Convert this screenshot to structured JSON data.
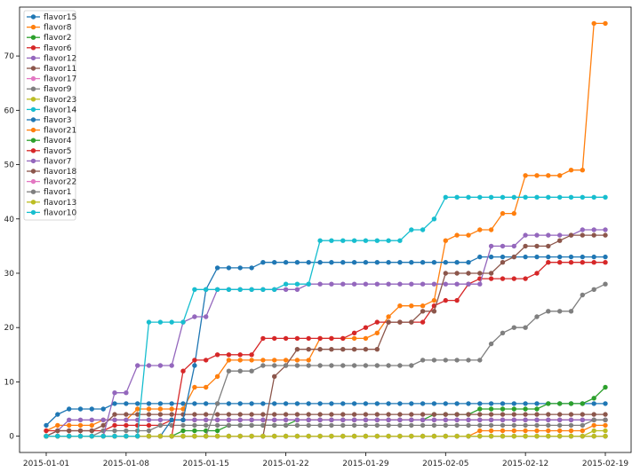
{
  "chart_data": {
    "type": "line",
    "x_type": "date",
    "x": [
      "2015-01-01",
      "2015-01-02",
      "2015-01-03",
      "2015-01-04",
      "2015-01-05",
      "2015-01-06",
      "2015-01-07",
      "2015-01-08",
      "2015-01-09",
      "2015-01-10",
      "2015-01-11",
      "2015-01-12",
      "2015-01-13",
      "2015-01-14",
      "2015-01-15",
      "2015-01-16",
      "2015-01-17",
      "2015-01-18",
      "2015-01-19",
      "2015-01-20",
      "2015-01-21",
      "2015-01-22",
      "2015-01-23",
      "2015-01-24",
      "2015-01-25",
      "2015-01-26",
      "2015-01-27",
      "2015-01-28",
      "2015-01-29",
      "2015-01-30",
      "2015-01-31",
      "2015-02-01",
      "2015-02-02",
      "2015-02-03",
      "2015-02-04",
      "2015-02-05",
      "2015-02-06",
      "2015-02-07",
      "2015-02-08",
      "2015-02-09",
      "2015-02-10",
      "2015-02-11",
      "2015-02-12",
      "2015-02-13",
      "2015-02-14",
      "2015-02-15",
      "2015-02-16",
      "2015-02-17",
      "2015-02-18",
      "2015-02-19"
    ],
    "x_ticks": [
      "2015-01-01",
      "2015-01-08",
      "2015-01-15",
      "2015-01-22",
      "2015-01-29",
      "2015-02-05",
      "2015-02-12",
      "2015-02-19"
    ],
    "ylim": [
      -3,
      79
    ],
    "y_ticks": [
      0,
      10,
      20,
      30,
      40,
      50,
      60,
      70
    ],
    "grid": false,
    "legend_position": "top-left",
    "title": "",
    "xlabel": "",
    "ylabel": "",
    "series": [
      {
        "name": "flavor15",
        "color": "#1f77b4",
        "values": [
          2,
          4,
          5,
          5,
          5,
          5,
          6,
          6,
          6,
          6,
          6,
          6,
          6,
          6,
          6,
          6,
          6,
          6,
          6,
          6,
          6,
          6,
          6,
          6,
          6,
          6,
          6,
          6,
          6,
          6,
          6,
          6,
          6,
          6,
          6,
          6,
          6,
          6,
          6,
          6,
          6,
          6,
          6,
          6,
          6,
          6,
          6,
          6,
          6,
          6
        ]
      },
      {
        "name": "flavor8",
        "color": "#ff7f0e",
        "values": [
          1,
          2,
          2,
          2,
          2,
          3,
          3,
          3,
          5,
          5,
          5,
          5,
          5,
          9,
          9,
          11,
          14,
          14,
          14,
          14,
          14,
          14,
          14,
          14,
          18,
          18,
          18,
          18,
          18,
          19,
          22,
          24,
          24,
          24,
          25,
          36,
          37,
          37,
          38,
          38,
          41,
          41,
          48,
          48,
          48,
          48,
          49,
          49,
          76,
          76
        ]
      },
      {
        "name": "flavor2",
        "color": "#2ca02c",
        "values": [
          0,
          0,
          0,
          0,
          0,
          0,
          0,
          0,
          0,
          0,
          0,
          0,
          1,
          1,
          1,
          1,
          2,
          2,
          2,
          2,
          2,
          2,
          3,
          3,
          3,
          3,
          3,
          3,
          3,
          3,
          3,
          3,
          3,
          3,
          4,
          4,
          4,
          4,
          5,
          5,
          5,
          5,
          5,
          5,
          6,
          6,
          6,
          6,
          7,
          9
        ]
      },
      {
        "name": "flavor6",
        "color": "#d62728",
        "values": [
          1,
          1,
          1,
          1,
          1,
          1,
          2,
          2,
          2,
          2,
          2,
          3,
          3,
          3,
          3,
          3,
          3,
          3,
          3,
          3,
          3,
          3,
          3,
          3,
          3,
          3,
          3,
          3,
          3,
          3,
          3,
          3,
          3,
          3,
          3,
          3,
          3,
          3,
          3,
          3,
          3,
          3,
          3,
          3,
          3,
          3,
          3,
          3,
          3,
          3
        ]
      },
      {
        "name": "flavor12",
        "color": "#9467bd",
        "values": [
          0,
          1,
          3,
          3,
          3,
          3,
          3,
          3,
          3,
          3,
          3,
          3,
          3,
          3,
          3,
          3,
          3,
          3,
          3,
          3,
          3,
          3,
          3,
          3,
          3,
          3,
          3,
          3,
          3,
          3,
          3,
          3,
          3,
          3,
          3,
          3,
          3,
          3,
          3,
          3,
          3,
          3,
          3,
          3,
          3,
          3,
          3,
          3,
          3,
          3
        ]
      },
      {
        "name": "flavor11",
        "color": "#8c564b",
        "values": [
          0,
          1,
          1,
          1,
          1,
          2,
          4,
          4,
          4,
          4,
          4,
          4,
          4,
          4,
          4,
          4,
          4,
          4,
          4,
          4,
          4,
          4,
          4,
          4,
          4,
          4,
          4,
          4,
          4,
          4,
          4,
          4,
          4,
          4,
          4,
          4,
          4,
          4,
          4,
          4,
          4,
          4,
          4,
          4,
          4,
          4,
          4,
          4,
          4,
          4
        ]
      },
      {
        "name": "flavor17",
        "color": "#e377c2",
        "values": [
          0,
          0,
          0,
          0,
          0,
          0,
          0,
          0,
          0,
          0,
          0,
          0,
          0,
          0,
          0,
          0,
          0,
          0,
          0,
          0,
          0,
          0,
          0,
          0,
          0,
          0,
          0,
          0,
          0,
          0,
          0,
          0,
          0,
          0,
          0,
          0,
          0,
          0,
          0,
          0,
          0,
          0,
          0,
          0,
          0,
          0,
          0,
          0,
          0,
          0
        ]
      },
      {
        "name": "flavor9",
        "color": "#7f7f7f",
        "values": [
          0,
          0,
          0,
          0,
          0,
          1,
          1,
          1,
          1,
          1,
          2,
          2,
          2,
          2,
          2,
          2,
          2,
          2,
          2,
          2,
          2,
          2,
          2,
          2,
          2,
          2,
          2,
          2,
          2,
          2,
          2,
          2,
          2,
          2,
          2,
          2,
          2,
          2,
          2,
          2,
          2,
          2,
          2,
          2,
          2,
          2,
          2,
          2,
          3,
          3
        ]
      },
      {
        "name": "flavor23",
        "color": "#bcbd22",
        "values": [
          0,
          0,
          0,
          0,
          0,
          0,
          0,
          0,
          0,
          0,
          0,
          0,
          0,
          0,
          0,
          0,
          0,
          0,
          0,
          0,
          0,
          0,
          0,
          0,
          0,
          0,
          0,
          0,
          0,
          0,
          0,
          0,
          0,
          0,
          0,
          0,
          0,
          0,
          0,
          0,
          0,
          0,
          0,
          0,
          0,
          0,
          0,
          0,
          1,
          1
        ]
      },
      {
        "name": "flavor14",
        "color": "#17becf",
        "values": [
          0,
          0,
          0,
          0,
          0,
          0,
          0,
          0,
          0,
          0,
          0,
          0,
          0,
          0,
          0,
          0,
          0,
          0,
          0,
          0,
          0,
          0,
          0,
          0,
          0,
          0,
          0,
          0,
          0,
          0,
          0,
          0,
          0,
          0,
          0,
          0,
          0,
          0,
          0,
          0,
          0,
          0,
          0,
          0,
          0,
          0,
          0,
          0,
          0,
          0
        ]
      },
      {
        "name": "flavor3",
        "color": "#1f77b4",
        "values": [
          0,
          0,
          0,
          0,
          0,
          0,
          0,
          0,
          0,
          0,
          0,
          3,
          3,
          13,
          27,
          31,
          31,
          31,
          31,
          32,
          32,
          32,
          32,
          32,
          32,
          32,
          32,
          32,
          32,
          32,
          32,
          32,
          32,
          32,
          32,
          32,
          32,
          32,
          33,
          33,
          33,
          33,
          33,
          33,
          33,
          33,
          33,
          33,
          33,
          33
        ]
      },
      {
        "name": "flavor21",
        "color": "#ff7f0e",
        "values": [
          0,
          0,
          0,
          0,
          0,
          0,
          0,
          0,
          0,
          0,
          0,
          0,
          0,
          0,
          0,
          0,
          0,
          0,
          0,
          0,
          0,
          0,
          0,
          0,
          0,
          0,
          0,
          0,
          0,
          0,
          0,
          0,
          0,
          0,
          0,
          0,
          0,
          0,
          1,
          1,
          1,
          1,
          1,
          1,
          1,
          1,
          1,
          1,
          2,
          2
        ]
      },
      {
        "name": "flavor4",
        "color": "#2ca02c",
        "values": [
          0,
          0,
          0,
          0,
          0,
          0,
          0,
          0,
          0,
          0,
          0,
          0,
          0,
          0,
          0,
          0,
          0,
          0,
          0,
          0,
          0,
          0,
          0,
          0,
          0,
          0,
          0,
          0,
          0,
          0,
          0,
          0,
          0,
          0,
          0,
          0,
          0,
          0,
          0,
          0,
          0,
          0,
          0,
          0,
          0,
          0,
          0,
          0,
          0,
          0
        ]
      },
      {
        "name": "flavor5",
        "color": "#d62728",
        "values": [
          0,
          0,
          0,
          0,
          0,
          0,
          0,
          0,
          0,
          0,
          0,
          0,
          12,
          14,
          14,
          15,
          15,
          15,
          15,
          18,
          18,
          18,
          18,
          18,
          18,
          18,
          18,
          19,
          20,
          21,
          21,
          21,
          21,
          21,
          24,
          25,
          25,
          28,
          29,
          29,
          29,
          29,
          29,
          30,
          32,
          32,
          32,
          32,
          32,
          32
        ]
      },
      {
        "name": "flavor7",
        "color": "#9467bd",
        "values": [
          0,
          0,
          0,
          0,
          0,
          0,
          8,
          8,
          13,
          13,
          13,
          13,
          21,
          22,
          22,
          27,
          27,
          27,
          27,
          27,
          27,
          27,
          27,
          28,
          28,
          28,
          28,
          28,
          28,
          28,
          28,
          28,
          28,
          28,
          28,
          28,
          28,
          28,
          28,
          35,
          35,
          35,
          37,
          37,
          37,
          37,
          37,
          38,
          38,
          38
        ]
      },
      {
        "name": "flavor18",
        "color": "#8c564b",
        "values": [
          0,
          0,
          0,
          0,
          0,
          0,
          0,
          0,
          0,
          0,
          0,
          0,
          0,
          0,
          0,
          0,
          0,
          0,
          0,
          0,
          11,
          13,
          16,
          16,
          16,
          16,
          16,
          16,
          16,
          16,
          21,
          21,
          21,
          23,
          23,
          30,
          30,
          30,
          30,
          30,
          32,
          33,
          35,
          35,
          35,
          36,
          37,
          37,
          37,
          37
        ]
      },
      {
        "name": "flavor22",
        "color": "#e377c2",
        "values": [
          0,
          0,
          0,
          0,
          0,
          0,
          0,
          0,
          0,
          0,
          0,
          0,
          0,
          0,
          0,
          0,
          0,
          0,
          0,
          0,
          0,
          0,
          0,
          0,
          0,
          0,
          0,
          0,
          0,
          0,
          0,
          0,
          0,
          0,
          0,
          0,
          0,
          0,
          0,
          0,
          0,
          0,
          0,
          0,
          0,
          0,
          0,
          0,
          0,
          0
        ]
      },
      {
        "name": "flavor1",
        "color": "#7f7f7f",
        "values": [
          0,
          0,
          0,
          0,
          0,
          0,
          0,
          0,
          0,
          0,
          0,
          0,
          0,
          0,
          0,
          6,
          12,
          12,
          12,
          13,
          13,
          13,
          13,
          13,
          13,
          13,
          13,
          13,
          13,
          13,
          13,
          13,
          13,
          14,
          14,
          14,
          14,
          14,
          14,
          17,
          19,
          20,
          20,
          22,
          23,
          23,
          23,
          26,
          27,
          28
        ]
      },
      {
        "name": "flavor13",
        "color": "#bcbd22",
        "values": [
          0,
          0,
          0,
          0,
          0,
          0,
          0,
          0,
          0,
          0,
          0,
          0,
          0,
          0,
          0,
          0,
          0,
          0,
          0,
          0,
          0,
          0,
          0,
          0,
          0,
          0,
          0,
          0,
          0,
          0,
          0,
          0,
          0,
          0,
          0,
          0,
          0,
          0,
          0,
          0,
          0,
          0,
          0,
          0,
          0,
          0,
          0,
          0,
          0,
          0
        ]
      },
      {
        "name": "flavor10",
        "color": "#17becf",
        "values": [
          0,
          0,
          0,
          0,
          0,
          0,
          0,
          0,
          0,
          21,
          21,
          21,
          21,
          27,
          27,
          27,
          27,
          27,
          27,
          27,
          27,
          28,
          28,
          28,
          36,
          36,
          36,
          36,
          36,
          36,
          36,
          36,
          38,
          38,
          40,
          44,
          44,
          44,
          44,
          44,
          44,
          44,
          44,
          44,
          44,
          44,
          44,
          44,
          44,
          44
        ]
      }
    ]
  }
}
